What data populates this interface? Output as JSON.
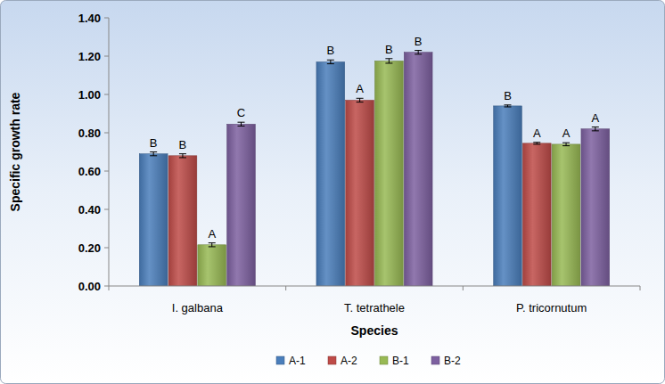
{
  "chart_data": {
    "type": "bar",
    "x_label": "Species",
    "y_label": "Specific growth rate",
    "categories": [
      "I. galbana",
      "T. tetrathele",
      "P. tricornutum"
    ],
    "series": [
      {
        "name": "A-1",
        "color": "#4a7ebb",
        "values": [
          0.69,
          1.17,
          0.94
        ],
        "errors": [
          0.01,
          0.01,
          0.005
        ],
        "annotations": [
          "B",
          "B",
          "B"
        ]
      },
      {
        "name": "A-2",
        "color": "#be4b48",
        "values": [
          0.68,
          0.97,
          0.745
        ],
        "errors": [
          0.01,
          0.01,
          0.005
        ],
        "annotations": [
          "B",
          "A",
          "A"
        ]
      },
      {
        "name": "B-1",
        "color": "#98b954",
        "values": [
          0.215,
          1.175,
          0.74
        ],
        "errors": [
          0.01,
          0.012,
          0.008
        ],
        "annotations": [
          "A",
          "B",
          "A"
        ]
      },
      {
        "name": "B-2",
        "color": "#7d60a0",
        "values": [
          0.845,
          1.22,
          0.82
        ],
        "errors": [
          0.01,
          0.01,
          0.01
        ],
        "annotations": [
          "C",
          "B",
          "A"
        ]
      }
    ],
    "ylim": [
      0,
      1.4
    ],
    "yticks": [
      {
        "value": 0,
        "label": "0.00"
      },
      {
        "value": 0.2,
        "label": "0.20"
      },
      {
        "value": 0.4,
        "label": "0.40"
      },
      {
        "value": 0.6,
        "label": "0.60"
      },
      {
        "value": 0.8,
        "label": "0.80"
      },
      {
        "value": 1.0,
        "label": "1.00"
      },
      {
        "value": 1.2,
        "label": "1.20"
      },
      {
        "value": 1.4,
        "label": "1.40"
      }
    ],
    "grid": false,
    "legend": "bottom"
  }
}
